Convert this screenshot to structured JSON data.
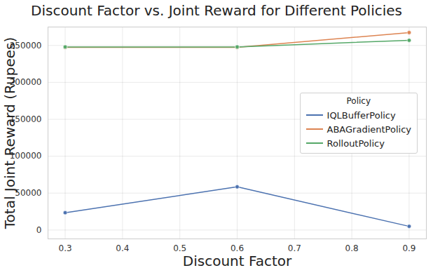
{
  "chart_data": {
    "type": "line",
    "title": "Discount Factor vs. Joint Reward for Different Policies",
    "x_label": "Discount Factor",
    "y_label": "Total Joint Reward (Rupees)",
    "x": [
      0.3,
      0.6,
      0.9
    ],
    "series": [
      {
        "name": "IQLBufferPolicy",
        "color": "#4c72b0",
        "values": [
          23500,
          58500,
          5000
        ]
      },
      {
        "name": "ABAGradientPolicy",
        "color": "#dd8452",
        "values": [
          247500,
          247500,
          267500
        ]
      },
      {
        "name": "RolloutPolicy",
        "color": "#55a868",
        "values": [
          248000,
          248000,
          257000
        ]
      }
    ],
    "xlim": [
      0.27,
      0.93
    ],
    "xticks": [
      0.3,
      0.4,
      0.5,
      0.6,
      0.7,
      0.8,
      0.9
    ],
    "ylim": [
      -12000,
      275000
    ],
    "yticks": [
      0,
      50000,
      100000,
      150000,
      200000,
      250000
    ],
    "grid": true,
    "legend": "right",
    "legend_title": "Policy",
    "marker": "o",
    "line_style": "solid"
  }
}
